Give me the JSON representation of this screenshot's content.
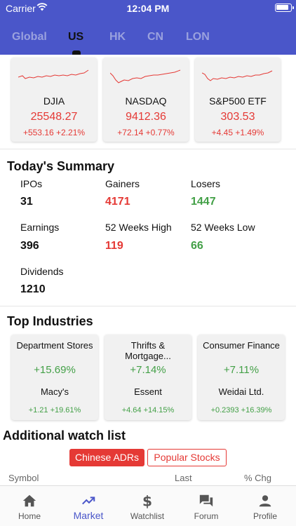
{
  "status_bar": {
    "carrier": "Carrier",
    "time": "12:04 PM"
  },
  "market_tabs": [
    {
      "label": "Global",
      "active": false
    },
    {
      "label": "US",
      "active": true
    },
    {
      "label": "HK",
      "active": false
    },
    {
      "label": "CN",
      "active": false
    },
    {
      "label": "LON",
      "active": false
    }
  ],
  "indices": [
    {
      "name": "DJIA",
      "value": "25548.27",
      "change": "+553.16  +2.21%"
    },
    {
      "name": "NASDAQ",
      "value": "9412.36",
      "change": "+72.14  +0.77%"
    },
    {
      "name": "S&P500 ETF",
      "value": "303.53",
      "change": "+4.45  +1.49%"
    }
  ],
  "summary": {
    "title": "Today's Summary",
    "items": [
      {
        "label": "IPOs",
        "value": "31",
        "tone": "neutral"
      },
      {
        "label": "Gainers",
        "value": "4171",
        "tone": "up"
      },
      {
        "label": "Losers",
        "value": "1447",
        "tone": "down"
      },
      {
        "label": "Earnings",
        "value": "396",
        "tone": "neutral"
      },
      {
        "label": "52 Weeks High",
        "value": "119",
        "tone": "up"
      },
      {
        "label": "52 Weeks Low",
        "value": "66",
        "tone": "down"
      },
      {
        "label": "Dividends",
        "value": "1210",
        "tone": "neutral"
      }
    ]
  },
  "industries": {
    "title": "Top Industries",
    "items": [
      {
        "name": "Department Stores",
        "pct": "+15.69%",
        "stock": "Macy's",
        "change": "+1.21  +19.61%"
      },
      {
        "name": "Thrifts & Mortgage...",
        "pct": "+7.14%",
        "stock": "Essent",
        "change": "+4.64  +14.15%"
      },
      {
        "name": "Consumer Finance",
        "pct": "+7.11%",
        "stock": "Weidai Ltd.",
        "change": "+0.2393  +16.39%"
      }
    ]
  },
  "watchlist": {
    "title": "Additional watch list",
    "tabs": [
      "Chinese ADRs",
      "Popular Stocks"
    ],
    "columns": [
      "Symbol",
      "Last",
      "% Chg"
    ]
  },
  "bottom_nav": [
    {
      "label": "Home",
      "icon": "home-icon",
      "active": false
    },
    {
      "label": "Market",
      "icon": "trending-up-icon",
      "active": true
    },
    {
      "label": "Watchlist",
      "icon": "dollar-icon",
      "active": false
    },
    {
      "label": "Forum",
      "icon": "forum-icon",
      "active": false
    },
    {
      "label": "Profile",
      "icon": "person-icon",
      "active": false
    }
  ],
  "colors": {
    "header": "#4a56c9",
    "up": "#e53935",
    "down": "#43a047",
    "active_nav": "#4a56c9"
  }
}
